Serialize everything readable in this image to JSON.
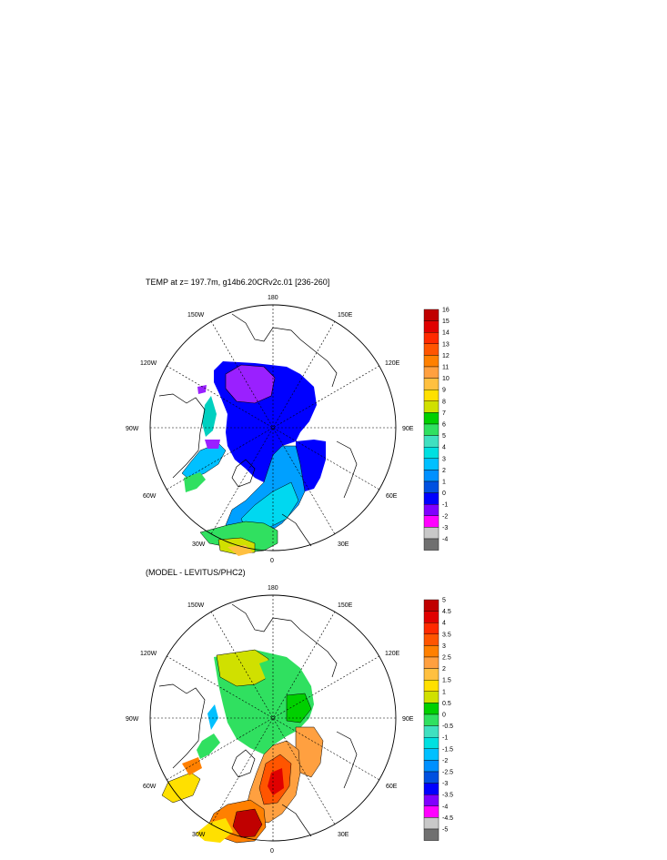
{
  "panel_top": {
    "title": "TEMP at z= 197.7m, g14b6.20CRv2c.01 [236-260]",
    "longitude_labels": [
      "180",
      "150E",
      "120E",
      "90E",
      "60E",
      "30E",
      "0",
      "30W",
      "60W",
      "90W",
      "120W",
      "150W"
    ],
    "colorbar": {
      "labels": [
        "16",
        "15",
        "14",
        "13",
        "12",
        "11",
        "10",
        "9",
        "8",
        "7",
        "6",
        "5",
        "4",
        "3",
        "2",
        "1",
        "0",
        "-1",
        "-2",
        "-3",
        "-4"
      ],
      "colors": [
        "#c00000",
        "#e00000",
        "#ff2a00",
        "#ff5500",
        "#ff8000",
        "#ffa040",
        "#ffc040",
        "#ffe000",
        "#d0e000",
        "#00d000",
        "#30e060",
        "#40e0c0",
        "#00e0e0",
        "#00c0ff",
        "#0090ff",
        "#0050e0",
        "#0000ff",
        "#8000ff",
        "#ff00ff",
        "#c8c8c8",
        "#707070"
      ]
    }
  },
  "panel_bottom": {
    "title": "(MODEL - LEVITUS/PHC2)",
    "longitude_labels": [
      "180",
      "150E",
      "120E",
      "90E",
      "60E",
      "30E",
      "0",
      "30W",
      "60W",
      "90W",
      "120W",
      "150W"
    ],
    "colorbar": {
      "labels": [
        "5",
        "4.5",
        "4",
        "3.5",
        "3",
        "2.5",
        "2",
        "1.5",
        "1",
        "0.5",
        "0",
        "-0.5",
        "-1",
        "-1.5",
        "-2",
        "-2.5",
        "-3",
        "-3.5",
        "-4",
        "-4.5",
        "-5"
      ],
      "colors": [
        "#c00000",
        "#e00000",
        "#ff2a00",
        "#ff5500",
        "#ff8000",
        "#ffa040",
        "#ffc040",
        "#ffe000",
        "#d0e000",
        "#00d000",
        "#30e060",
        "#40e0c0",
        "#00e0e0",
        "#00c0ff",
        "#0090ff",
        "#0050e0",
        "#0000ff",
        "#8000ff",
        "#ff00ff",
        "#c8c8c8",
        "#707070"
      ]
    }
  }
}
